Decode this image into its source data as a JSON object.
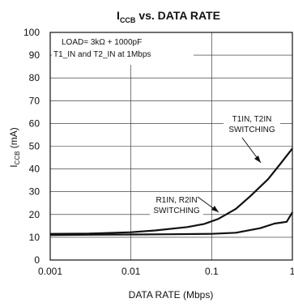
{
  "chart_data": {
    "type": "line",
    "title_main": "I",
    "title_sub": "CCB",
    "title_rest": " vs. DATA RATE",
    "xlabel": "DATA RATE (Mbps)",
    "ylabel_main": "I",
    "ylabel_sub": "CCB",
    "ylabel_rest": " (mA)",
    "x_scale": "log",
    "xlim": [
      0.001,
      1
    ],
    "ylim": [
      0,
      100
    ],
    "grid": true,
    "x_ticks": [
      "0.001",
      "0.01",
      "0.1",
      "1"
    ],
    "y_ticks": [
      "0",
      "10",
      "20",
      "30",
      "40",
      "50",
      "60",
      "70",
      "80",
      "90",
      "100"
    ],
    "legend_lines": [
      "LOAD= 3kΩ + 1000pF",
      "T1_IN and T2_IN at 1Mbps"
    ],
    "annotations": [
      {
        "line1": "T1IN, T2IN",
        "line2": "SWITCHING"
      },
      {
        "line1": "R1IN, R2IN",
        "line2": "SWITCHING"
      }
    ],
    "series": [
      {
        "name": "T1IN, T2IN SWITCHING",
        "x": [
          0.001,
          0.003,
          0.01,
          0.02,
          0.05,
          0.08,
          0.12,
          0.2,
          0.3,
          0.5,
          0.7,
          1.0
        ],
        "y": [
          11.5,
          11.6,
          12.2,
          13.0,
          14.5,
          15.8,
          18.0,
          22.5,
          28.0,
          35.5,
          42.0,
          49.0
        ]
      },
      {
        "name": "R1IN, R2IN SWITCHING",
        "x": [
          0.001,
          0.003,
          0.01,
          0.03,
          0.1,
          0.2,
          0.4,
          0.6,
          0.75,
          0.85,
          1.0
        ],
        "y": [
          11.0,
          11.1,
          11.2,
          11.3,
          11.5,
          12.0,
          14.0,
          16.0,
          16.5,
          16.8,
          21.0
        ]
      }
    ]
  }
}
